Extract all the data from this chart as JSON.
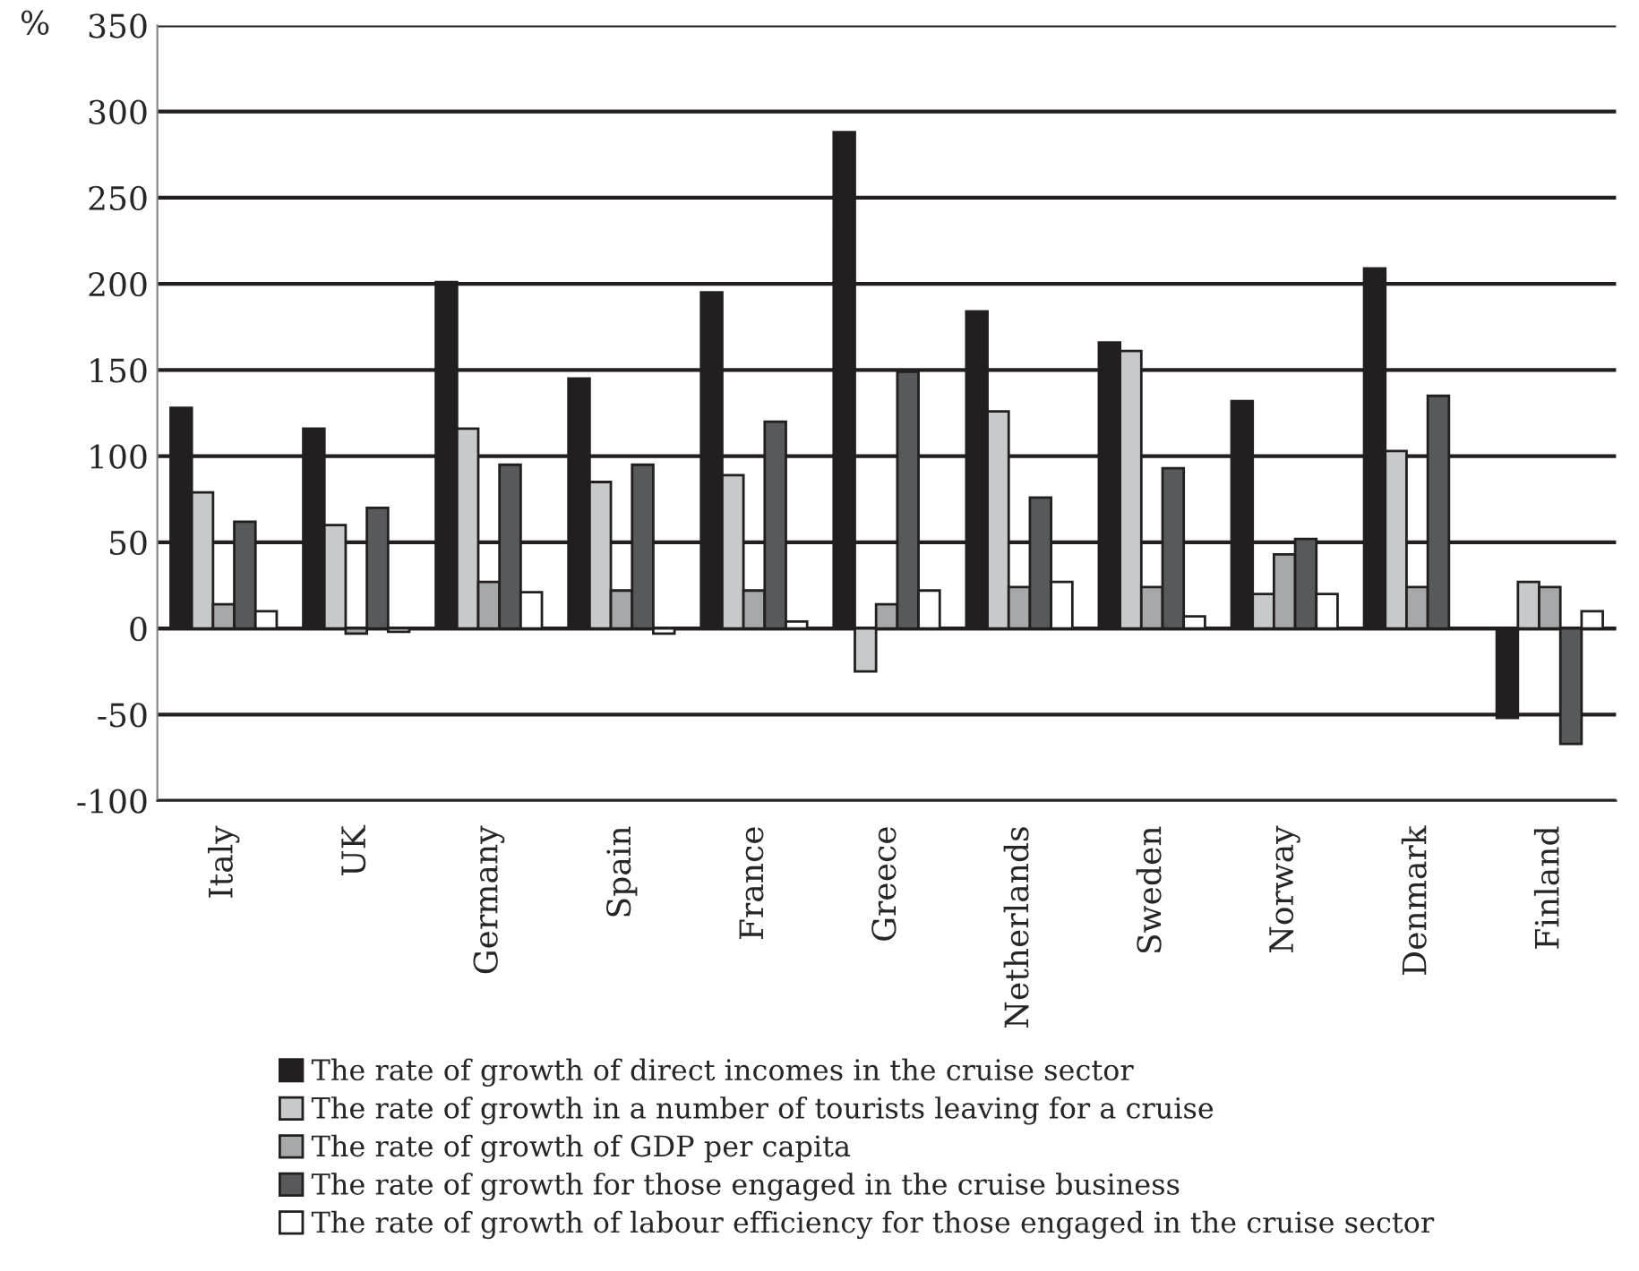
{
  "chart_data": {
    "type": "bar",
    "ylabel": "%",
    "categories": [
      "Italy",
      "UK",
      "Germany",
      "Spain",
      "France",
      "Greece",
      "Netherlands",
      "Sweden",
      "Norway",
      "Denmark",
      "Finland"
    ],
    "series": [
      {
        "name": "The rate of growth of direct incomes in the cruise sector",
        "color": "#231f20",
        "values": [
          128,
          116,
          201,
          145,
          195,
          288,
          184,
          166,
          132,
          209,
          -52
        ]
      },
      {
        "name": "The rate of growth in a number of tourists leaving for a cruise",
        "color": "#c8c9cb",
        "values": [
          79,
          60,
          116,
          85,
          89,
          -25,
          126,
          161,
          20,
          103,
          27
        ]
      },
      {
        "name": "The rate of growth of GDP per capita",
        "color": "#a7a8aa",
        "values": [
          14,
          -3,
          27,
          22,
          22,
          14,
          24,
          24,
          43,
          24,
          24
        ]
      },
      {
        "name": "The rate of growth for those engaged in the cruise business",
        "color": "#58595b",
        "values": [
          62,
          70,
          95,
          95,
          120,
          149,
          76,
          93,
          52,
          135,
          -67
        ]
      },
      {
        "name": "The rate of growth of labour efficiency for those engaged in the cruise sector",
        "color": "#ffffff",
        "values": [
          10,
          -2,
          21,
          -3,
          4,
          22,
          27,
          7,
          20,
          null,
          10
        ]
      }
    ],
    "ylim": [
      -100,
      350
    ],
    "yticks": [
      -100,
      -50,
      0,
      50,
      100,
      150,
      200,
      250,
      300,
      350
    ],
    "grid": "y",
    "legend": "bottom"
  }
}
